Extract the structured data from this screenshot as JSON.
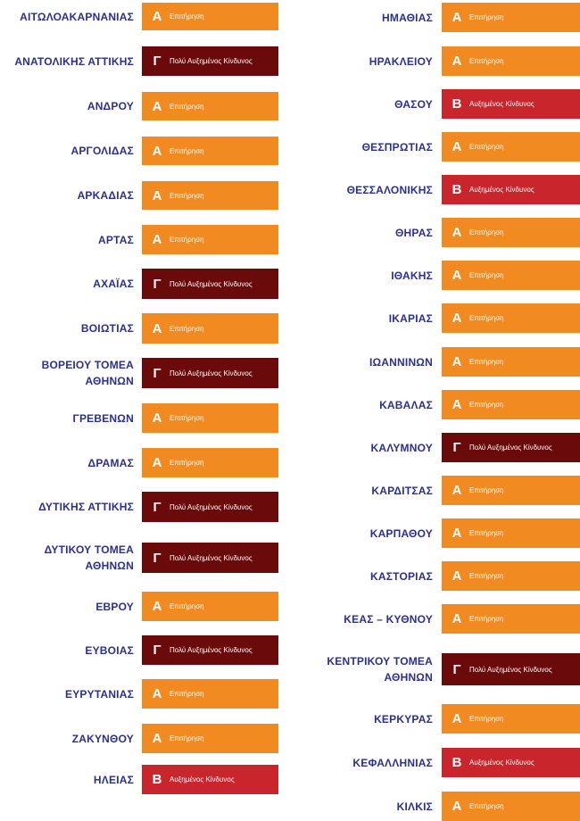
{
  "level_colors": {
    "A": "#f28a22",
    "B": "#c8252c",
    "C": "#6b0a0a"
  },
  "left_column": [
    {
      "name": "ΑΙΤΩΛΟΑΚΑΡΝΑΝΙΑΣ",
      "level": "A",
      "letter": "Α",
      "label": "Επιτήρηση"
    },
    {
      "name": "ΑΝΑΤΟΛΙΚΗΣ ΑΤΤΙΚΗΣ",
      "level": "C",
      "letter": "Γ",
      "label": "Πολύ Αυξημένος Κίνδυνος"
    },
    {
      "name": "ΑΝΔΡΟΥ",
      "level": "A",
      "letter": "Α",
      "label": "Επιτήρηση"
    },
    {
      "name": "ΑΡΓΟΛΙΔΑΣ",
      "level": "A",
      "letter": "Α",
      "label": "Επιτήρηση"
    },
    {
      "name": "ΑΡΚΑΔΙΑΣ",
      "level": "A",
      "letter": "Α",
      "label": "Επιτήρηση"
    },
    {
      "name": "ΑΡΤΑΣ",
      "level": "A",
      "letter": "Α",
      "label": "Επιτήρηση"
    },
    {
      "name": "ΑΧΑΪΑΣ",
      "level": "C",
      "letter": "Γ",
      "label": "Πολύ Αυξημένος Κίνδυνος"
    },
    {
      "name": "ΒΟΙΩΤΙΑΣ",
      "level": "A",
      "letter": "Α",
      "label": "Επιτήρηση"
    },
    {
      "name": "ΒΟΡΕΙΟΥ ΤΟΜΕΑ\nΑΘΗΝΩΝ",
      "level": "C",
      "letter": "Γ",
      "label": "Πολύ Αυξημένος Κίνδυνος"
    },
    {
      "name": "ΓΡΕΒΕΝΩΝ",
      "level": "A",
      "letter": "Α",
      "label": "Επιτήρηση"
    },
    {
      "name": "ΔΡΑΜΑΣ",
      "level": "A",
      "letter": "Α",
      "label": "Επιτήρηση"
    },
    {
      "name": "ΔΥΤΙΚΗΣ ΑΤΤΙΚΗΣ",
      "level": "C",
      "letter": "Γ",
      "label": "Πολύ Αυξημένος Κίνδυνος"
    },
    {
      "name": "ΔΥΤΙΚΟΥ ΤΟΜΕΑ\nΑΘΗΝΩΝ",
      "level": "C",
      "letter": "Γ",
      "label": "Πολύ Αυξημένος Κίνδυνος"
    },
    {
      "name": "ΕΒΡΟΥ",
      "level": "A",
      "letter": "Α",
      "label": "Επιτήρηση"
    },
    {
      "name": "ΕΥΒΟΙΑΣ",
      "level": "C",
      "letter": "Γ",
      "label": "Πολύ Αυξημένος Κίνδυνος"
    },
    {
      "name": "ΕΥΡΥΤΑΝΙΑΣ",
      "level": "A",
      "letter": "Α",
      "label": "Επιτήρηση"
    },
    {
      "name": "ΖΑΚΥΝΘΟΥ",
      "level": "A",
      "letter": "Α",
      "label": "Επιτήρηση"
    },
    {
      "name": "ΗΛΕΙΑΣ",
      "level": "B",
      "letter": "Β",
      "label": "Αυξημένος Κίνδυνος"
    }
  ],
  "right_column": [
    {
      "name": "ΗΜΑΘΙΑΣ",
      "level": "A",
      "letter": "Α",
      "label": "Επιτήρηση"
    },
    {
      "name": "ΗΡΑΚΛΕΙΟΥ",
      "level": "A",
      "letter": "Α",
      "label": "Επιτήρηση"
    },
    {
      "name": "ΘΑΣΟΥ",
      "level": "B",
      "letter": "Β",
      "label": "Αυξημένος Κίνδυνος"
    },
    {
      "name": "ΘΕΣΠΡΩΤΙΑΣ",
      "level": "A",
      "letter": "Α",
      "label": "Επιτήρηση"
    },
    {
      "name": "ΘΕΣΣΑΛΟΝΙΚΗΣ",
      "level": "B",
      "letter": "Β",
      "label": "Αυξημένος Κίνδυνος"
    },
    {
      "name": "ΘΗΡΑΣ",
      "level": "A",
      "letter": "Α",
      "label": "Επιτήρηση"
    },
    {
      "name": "ΙΘΑΚΗΣ",
      "level": "A",
      "letter": "Α",
      "label": "Επιτήρηση"
    },
    {
      "name": "ΙΚΑΡΙΑΣ",
      "level": "A",
      "letter": "Α",
      "label": "Επιτήρηση"
    },
    {
      "name": "ΙΩΑΝΝΙΝΩΝ",
      "level": "A",
      "letter": "Α",
      "label": "Επιτήρηση"
    },
    {
      "name": "ΚΑΒΑΛΑΣ",
      "level": "A",
      "letter": "Α",
      "label": "Επιτήρηση"
    },
    {
      "name": "ΚΑΛΥΜΝΟΥ",
      "level": "C",
      "letter": "Γ",
      "label": "Πολύ Αυξημένος Κίνδυνος"
    },
    {
      "name": "ΚΑΡΔΙΤΣΑΣ",
      "level": "A",
      "letter": "Α",
      "label": "Επιτήρηση"
    },
    {
      "name": "ΚΑΡΠΑΘΟΥ",
      "level": "A",
      "letter": "Α",
      "label": "Επιτήρηση"
    },
    {
      "name": "ΚΑΣΤΟΡΙΑΣ",
      "level": "A",
      "letter": "Α",
      "label": "Επιτήρηση"
    },
    {
      "name": "ΚΕΑΣ – ΚΥΘΝΟΥ",
      "level": "A",
      "letter": "Α",
      "label": "Επιτήρηση"
    },
    {
      "name": "ΚΕΝΤΡΙΚΟΥ ΤΟΜΕΑ\nΑΘΗΝΩΝ",
      "level": "C",
      "letter": "Γ",
      "label": "Πολύ Αυξημένος Κίνδυνος"
    },
    {
      "name": "ΚΕΡΚΥΡΑΣ",
      "level": "A",
      "letter": "Α",
      "label": "Επιτήρηση"
    },
    {
      "name": "ΚΕΦΑΛΛΗΝΙΑΣ",
      "level": "B",
      "letter": "Β",
      "label": "Αυξημένος Κίνδυνος"
    },
    {
      "name": "ΚΙΛΚΙΣ",
      "level": "A",
      "letter": "Α",
      "label": "Επιτήρηση"
    }
  ]
}
